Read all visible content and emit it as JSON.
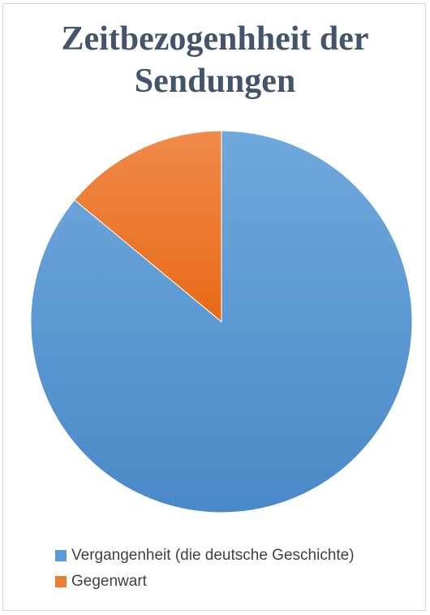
{
  "chart_data": {
    "type": "pie",
    "title": "Zeitbezogenhheit der Sendungen",
    "title_lines": [
      "Zeitbezogenhheit der",
      "Sendungen"
    ],
    "categories": [
      "Vergangenheit (die deutsche Geschichte)",
      "Gegenwart"
    ],
    "values": [
      86,
      14
    ],
    "colors": [
      "#5b9bd5",
      "#ed7d31"
    ],
    "start": "top",
    "direction": "clockwise",
    "legend_position": "bottom",
    "data_labels": false
  }
}
